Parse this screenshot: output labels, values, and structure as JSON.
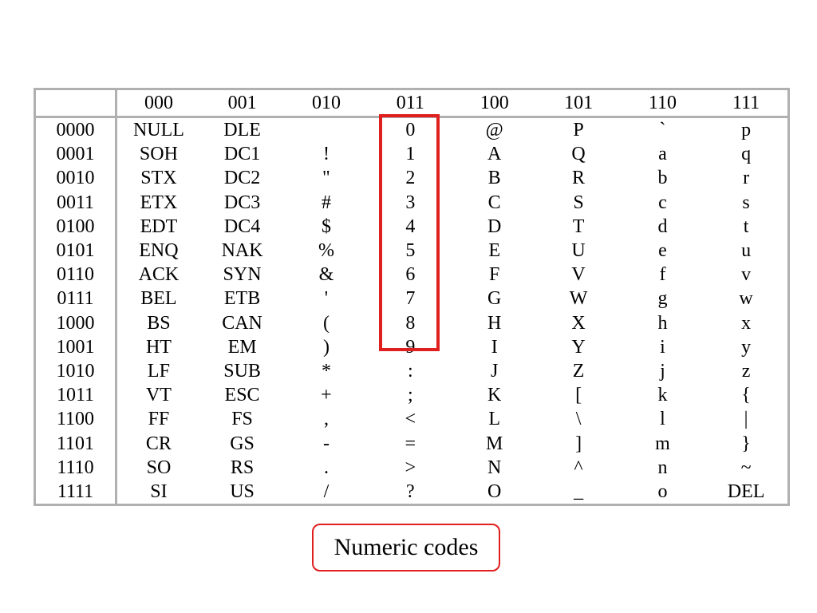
{
  "table": {
    "corner": "",
    "columns": [
      "000",
      "001",
      "010",
      "011",
      "100",
      "101",
      "110",
      "111"
    ],
    "rows": [
      {
        "code": "0000",
        "cells": [
          "NULL",
          "DLE",
          "",
          "0",
          "@",
          "P",
          "`",
          "p"
        ]
      },
      {
        "code": "0001",
        "cells": [
          "SOH",
          "DC1",
          "!",
          "1",
          "A",
          "Q",
          "a",
          "q"
        ]
      },
      {
        "code": "0010",
        "cells": [
          "STX",
          "DC2",
          "\"",
          "2",
          "B",
          "R",
          "b",
          "r"
        ]
      },
      {
        "code": "0011",
        "cells": [
          "ETX",
          "DC3",
          "#",
          "3",
          "C",
          "S",
          "c",
          "s"
        ]
      },
      {
        "code": "0100",
        "cells": [
          "EDT",
          "DC4",
          "$",
          "4",
          "D",
          "T",
          "d",
          "t"
        ]
      },
      {
        "code": "0101",
        "cells": [
          "ENQ",
          "NAK",
          "%",
          "5",
          "E",
          "U",
          "e",
          "u"
        ]
      },
      {
        "code": "0110",
        "cells": [
          "ACK",
          "SYN",
          "&",
          "6",
          "F",
          "V",
          "f",
          "v"
        ]
      },
      {
        "code": "0111",
        "cells": [
          "BEL",
          "ETB",
          "'",
          "7",
          "G",
          "W",
          "g",
          "w"
        ]
      },
      {
        "code": "1000",
        "cells": [
          "BS",
          "CAN",
          "(",
          "8",
          "H",
          "X",
          "h",
          "x"
        ]
      },
      {
        "code": "1001",
        "cells": [
          "HT",
          "EM",
          ")",
          "9",
          "I",
          "Y",
          "i",
          "y"
        ]
      },
      {
        "code": "1010",
        "cells": [
          "LF",
          "SUB",
          "*",
          ":",
          "J",
          "Z",
          "j",
          "z"
        ]
      },
      {
        "code": "1011",
        "cells": [
          "VT",
          "ESC",
          "+",
          ";",
          "K",
          "[",
          "k",
          "{"
        ]
      },
      {
        "code": "1100",
        "cells": [
          "FF",
          "FS",
          ",",
          "<",
          "L",
          "\\",
          "l",
          "|"
        ]
      },
      {
        "code": "1101",
        "cells": [
          "CR",
          "GS",
          "-",
          "=",
          "M",
          "]",
          "m",
          "}"
        ]
      },
      {
        "code": "1110",
        "cells": [
          "SO",
          "RS",
          ".",
          ">",
          "N",
          "^",
          "n",
          "~"
        ]
      },
      {
        "code": "1111",
        "cells": [
          "SI",
          "US",
          "/",
          "?",
          "O",
          "_",
          "o",
          "DEL"
        ]
      }
    ]
  },
  "caption": "Numeric codes",
  "colors": {
    "highlight": "#e0201e",
    "border": "#b0b0b0"
  }
}
